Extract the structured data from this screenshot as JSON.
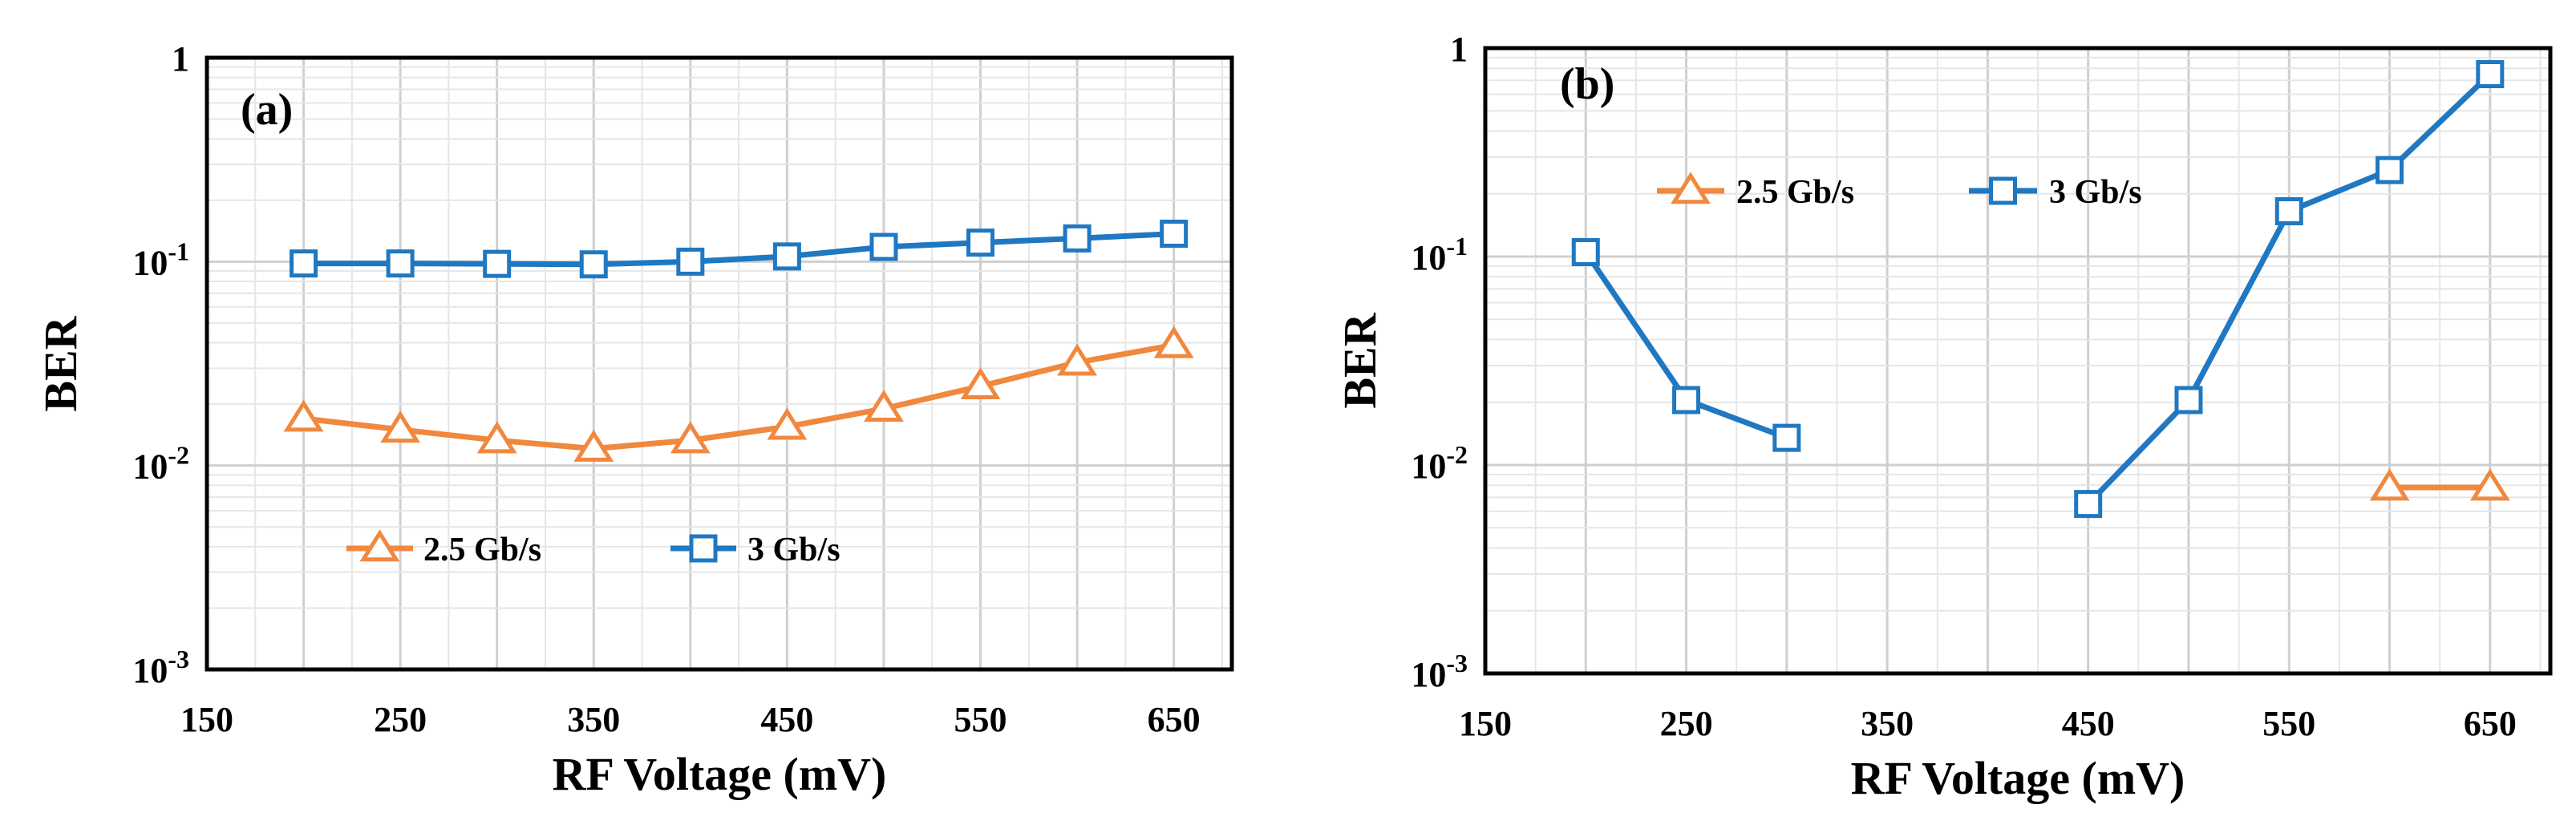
{
  "chart_data": [
    {
      "type": "line",
      "panel_label": "(a)",
      "xlabel": "RF Voltage (mV)",
      "ylabel": "BER",
      "yscale": "log",
      "xlim": [
        150,
        680
      ],
      "ylim": [
        0.001,
        1
      ],
      "x_ticks": [
        "150",
        "250",
        "350",
        "450",
        "550",
        "650"
      ],
      "y_ticks": [
        {
          "base": "1",
          "exp": ""
        },
        {
          "base": "10",
          "exp": "-1"
        },
        {
          "base": "10",
          "exp": "-2"
        },
        {
          "base": "10",
          "exp": "-3"
        }
      ],
      "legend_placement": "lower-left",
      "series": [
        {
          "name": "2.5 Gb/s",
          "color": "#F0883E",
          "marker": "triangle",
          "x": [
            200,
            250,
            300,
            350,
            400,
            450,
            500,
            550,
            600,
            650
          ],
          "y": [
            0.017,
            0.015,
            0.0133,
            0.0121,
            0.0133,
            0.0155,
            0.019,
            0.0245,
            0.032,
            0.039
          ]
        },
        {
          "name": "3 Gb/s",
          "color": "#1F78C1",
          "marker": "square",
          "x": [
            200,
            250,
            300,
            350,
            400,
            450,
            500,
            550,
            600,
            650
          ],
          "y": [
            0.098,
            0.098,
            0.0975,
            0.097,
            0.1,
            0.106,
            0.118,
            0.124,
            0.13,
            0.137
          ]
        }
      ]
    },
    {
      "type": "line",
      "panel_label": "(b)",
      "xlabel": "RF Voltage (mV)",
      "ylabel": "BER",
      "yscale": "log",
      "xlim": [
        150,
        680
      ],
      "ylim": [
        0.001,
        1
      ],
      "x_ticks": [
        "150",
        "250",
        "350",
        "450",
        "550",
        "650"
      ],
      "y_ticks": [
        {
          "base": "1",
          "exp": ""
        },
        {
          "base": "10",
          "exp": "-1"
        },
        {
          "base": "10",
          "exp": "-2"
        },
        {
          "base": "10",
          "exp": "-3"
        }
      ],
      "legend_placement": "top-left",
      "series": [
        {
          "name": "2.5 Gb/s",
          "color": "#F0883E",
          "marker": "triangle",
          "x": [
            600,
            650
          ],
          "y": [
            0.0078,
            0.0078
          ]
        },
        {
          "name": "3 Gb/s",
          "color": "#1F78C1",
          "marker": "square",
          "x": [
            200,
            250,
            300,
            null,
            450,
            500,
            550,
            600,
            650
          ],
          "y": [
            0.105,
            0.0205,
            0.0135,
            null,
            0.0065,
            0.0205,
            0.165,
            0.26,
            0.75
          ]
        }
      ]
    }
  ]
}
